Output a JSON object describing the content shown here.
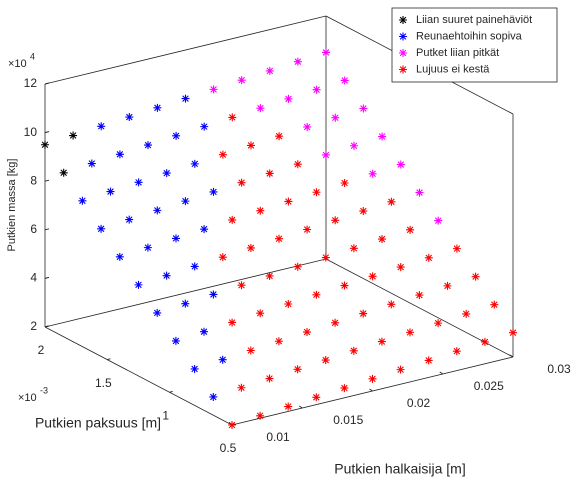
{
  "chart_data": {
    "type": "scatter3d",
    "xlabel": "Putkien halkaisija [m]",
    "ylabel": "Putkien paksuus [m]",
    "zlabel": "Putkien massa [kg]",
    "xlim": [
      0.01,
      0.03
    ],
    "xticks": [
      0.01,
      0.015,
      0.02,
      0.025,
      0.03
    ],
    "ylim": [
      0.5,
      2
    ],
    "yticks": [
      0.5,
      1,
      1.5,
      2
    ],
    "zlim": [
      2,
      12
    ],
    "zticks": [
      2,
      4,
      6,
      8,
      10,
      12
    ],
    "y_multiplier": "×10",
    "y_exponent": "-3",
    "z_multiplier": "×10",
    "z_exponent": "4",
    "legend": "northeast",
    "box": true,
    "marker": "*",
    "series": [
      {
        "name": "Liian suuret painehäviöt",
        "color": "#000000",
        "x": [
          0.01,
          0.012,
          0.01
        ],
        "y": [
          2,
          2,
          1.85
        ],
        "z": [
          9.5,
          9.6,
          8.75
        ]
      },
      {
        "name": "Reunaehtoihin sopiva",
        "color": "#0000ff",
        "x": [
          0.01,
          0.01,
          0.012,
          0.01,
          0.012,
          0.01,
          0.012,
          0.014,
          0.01,
          0.012,
          0.014,
          0.01,
          0.012,
          0.014,
          0.016,
          0.01,
          0.012,
          0.014,
          0.016,
          0.018,
          0.01,
          0.012,
          0.014,
          0.016,
          0.018,
          0.012,
          0.014,
          0.016,
          0.018,
          0.02,
          0.014,
          0.016,
          0.018,
          0.02
        ],
        "y": [
          0.65,
          0.8,
          0.8,
          0.95,
          0.95,
          1.1,
          1.1,
          1.1,
          1.25,
          1.25,
          1.25,
          1.4,
          1.4,
          1.4,
          1.4,
          1.55,
          1.55,
          1.55,
          1.55,
          1.55,
          1.7,
          1.7,
          1.7,
          1.7,
          1.7,
          1.85,
          1.85,
          1.85,
          1.85,
          1.85,
          2,
          2,
          2,
          2
        ],
        "z": [
          2.75,
          3.5,
          3.6,
          4.25,
          4.35,
          5,
          5.1,
          5.2,
          5.75,
          5.85,
          5.95,
          6.5,
          6.6,
          6.7,
          6.8,
          7.25,
          7.35,
          7.45,
          7.55,
          7.65,
          8,
          8.1,
          8.2,
          8.3,
          8.4,
          8.85,
          8.95,
          9.05,
          9.15,
          9.25,
          9.7,
          9.8,
          9.9,
          10
        ]
      },
      {
        "name": "Putket liian pitkät",
        "color": "#ff00ff",
        "x": [
          0.022,
          0.024,
          0.024,
          0.026,
          0.026,
          0.026,
          0.026,
          0.028,
          0.028,
          0.028,
          0.028,
          0.028,
          0.03,
          0.03,
          0.03,
          0.03,
          0.03,
          0.03,
          0.03
        ],
        "y": [
          2,
          1.85,
          2,
          1.55,
          1.7,
          1.85,
          2,
          1.4,
          1.55,
          1.7,
          1.85,
          2,
          1.1,
          1.25,
          1.4,
          1.55,
          1.7,
          1.85,
          2
        ],
        "z": [
          10.1,
          9.45,
          10.2,
          8.05,
          8.8,
          9.55,
          10.3,
          7.4,
          8.15,
          8.9,
          9.65,
          10.4,
          6,
          6.75,
          7.5,
          8.25,
          9,
          9.75,
          10.5
        ]
      },
      {
        "name": "Lujuus ei kestä",
        "color": "#ff0000",
        "x": [
          0.01,
          0.012,
          0.014,
          0.016,
          0.018,
          0.02,
          0.022,
          0.024,
          0.026,
          0.028,
          0.03,
          0.012,
          0.014,
          0.016,
          0.018,
          0.02,
          0.022,
          0.024,
          0.026,
          0.028,
          0.03,
          0.014,
          0.016,
          0.018,
          0.02,
          0.022,
          0.024,
          0.026,
          0.028,
          0.03,
          0.014,
          0.016,
          0.018,
          0.02,
          0.022,
          0.024,
          0.026,
          0.028,
          0.03,
          0.016,
          0.018,
          0.02,
          0.022,
          0.024,
          0.026,
          0.028,
          0.016,
          0.018,
          0.02,
          0.022,
          0.024,
          0.026,
          0.028,
          0.018,
          0.02,
          0.022,
          0.024,
          0.026,
          0.02,
          0.022,
          0.024,
          0.02,
          0.022,
          0.024,
          0.022
        ],
        "y": [
          0.5,
          0.5,
          0.5,
          0.5,
          0.5,
          0.5,
          0.5,
          0.5,
          0.5,
          0.5,
          0.5,
          0.65,
          0.65,
          0.65,
          0.65,
          0.65,
          0.65,
          0.65,
          0.65,
          0.65,
          0.65,
          0.8,
          0.8,
          0.8,
          0.8,
          0.8,
          0.8,
          0.8,
          0.8,
          0.8,
          0.95,
          0.95,
          0.95,
          0.95,
          0.95,
          0.95,
          0.95,
          0.95,
          0.95,
          1.1,
          1.1,
          1.1,
          1.1,
          1.1,
          1.1,
          1.1,
          1.25,
          1.25,
          1.25,
          1.25,
          1.25,
          1.25,
          1.25,
          1.4,
          1.4,
          1.4,
          1.4,
          1.4,
          1.55,
          1.55,
          1.55,
          1.7,
          1.7,
          1.7,
          1.85
        ],
        "z": [
          2,
          2.1,
          2.2,
          2.3,
          2.4,
          2.5,
          2.6,
          2.7,
          2.8,
          2.9,
          3,
          2.85,
          2.95,
          3.05,
          3.15,
          3.25,
          3.35,
          3.45,
          3.55,
          3.65,
          3.75,
          3.7,
          3.8,
          3.9,
          4,
          4.1,
          4.2,
          4.3,
          4.4,
          4.5,
          4.45,
          4.55,
          4.65,
          4.75,
          4.85,
          4.95,
          5.05,
          5.15,
          5.25,
          5.3,
          5.4,
          5.5,
          5.6,
          5.7,
          5.8,
          5.9,
          6.05,
          6.15,
          6.25,
          6.35,
          6.45,
          6.55,
          6.65,
          6.9,
          7,
          7.1,
          7.2,
          7.3,
          7.75,
          7.85,
          7.95,
          8.5,
          8.6,
          8.7,
          9.35
        ]
      }
    ]
  }
}
